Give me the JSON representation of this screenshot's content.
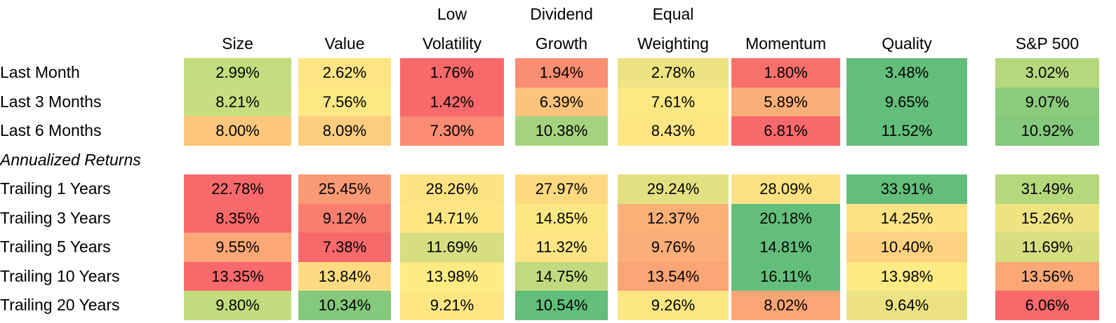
{
  "chart_data": {
    "type": "table",
    "columns": [
      {
        "line1": "",
        "line2": "Size"
      },
      {
        "line1": "",
        "line2": "Value"
      },
      {
        "line1": "Low",
        "line2": "Volatility"
      },
      {
        "line1": "Dividend",
        "line2": "Growth"
      },
      {
        "line1": "Equal",
        "line2": "Weighting"
      },
      {
        "line1": "",
        "line2": "Momentum"
      },
      {
        "line1": "",
        "line2": "Quality"
      },
      {
        "line1": "",
        "line2": "S&P 500"
      }
    ],
    "rows": [
      {
        "label": "Last Month",
        "values": [
          "2.99%",
          "2.62%",
          "1.76%",
          "1.94%",
          "2.78%",
          "1.80%",
          "3.48%",
          "3.02%"
        ],
        "colors": [
          "#c2dc7e",
          "#fde583",
          "#f8696b",
          "#f98e72",
          "#eee381",
          "#f8706c",
          "#63be7b",
          "#b6d87d"
        ]
      },
      {
        "label": "Last 3 Months",
        "values": [
          "8.21%",
          "7.56%",
          "1.42%",
          "6.39%",
          "7.61%",
          "5.89%",
          "9.65%",
          "9.07%"
        ],
        "colors": [
          "#c8dd7f",
          "#fee883",
          "#f8696b",
          "#fcc37c",
          "#fee883",
          "#fbaf78",
          "#63be7b",
          "#8ccc7c"
        ]
      },
      {
        "label": "Last 6 Months",
        "values": [
          "8.00%",
          "8.09%",
          "7.30%",
          "10.38%",
          "8.43%",
          "6.81%",
          "11.52%",
          "10.92%"
        ],
        "colors": [
          "#fdc67d",
          "#fdcd7e",
          "#f98c71",
          "#a5d27e",
          "#fee783",
          "#f8696b",
          "#63be7b",
          "#85c97c"
        ]
      }
    ],
    "section_label": "Annualized Returns",
    "annualized_rows": [
      {
        "label": "Trailing 1 Years",
        "values": [
          "22.78%",
          "25.45%",
          "28.26%",
          "27.97%",
          "29.24%",
          "28.09%",
          "33.91%",
          "31.49%"
        ],
        "colors": [
          "#f8696b",
          "#fa9a74",
          "#fde382",
          "#fed980",
          "#e3e082",
          "#fee282",
          "#63be7b",
          "#b6d87d"
        ]
      },
      {
        "label": "Trailing 3 Years",
        "values": [
          "8.35%",
          "9.12%",
          "14.71%",
          "14.85%",
          "12.37%",
          "20.18%",
          "14.25%",
          "15.26%"
        ],
        "colors": [
          "#f8696b",
          "#f97e6f",
          "#fee783",
          "#fce883",
          "#fbb078",
          "#63be7b",
          "#fee283",
          "#eee381"
        ]
      },
      {
        "label": "Trailing 5 Years",
        "values": [
          "9.55%",
          "7.38%",
          "11.69%",
          "11.32%",
          "9.76%",
          "14.81%",
          "10.40%",
          "11.69%"
        ],
        "colors": [
          "#fba876",
          "#f8696b",
          "#d7dd81",
          "#fee483",
          "#fcae78",
          "#63be7b",
          "#fed280",
          "#d7dd81"
        ]
      },
      {
        "label": "Trailing 10 Years",
        "values": [
          "13.35%",
          "13.84%",
          "13.98%",
          "14.75%",
          "13.54%",
          "16.11%",
          "13.98%",
          "13.56%"
        ],
        "colors": [
          "#f8696b",
          "#fedb81",
          "#feeb84",
          "#c1d97f",
          "#fba475",
          "#63be7b",
          "#feeb84",
          "#fba876"
        ]
      },
      {
        "label": "Trailing 20 Years",
        "values": [
          "9.80%",
          "10.34%",
          "9.21%",
          "10.54%",
          "9.26%",
          "8.02%",
          "9.64%",
          "6.06%"
        ],
        "colors": [
          "#c2db7f",
          "#85c97c",
          "#fee683",
          "#63be7b",
          "#fde783",
          "#fba476",
          "#eae283",
          "#f8696b"
        ]
      }
    ]
  }
}
